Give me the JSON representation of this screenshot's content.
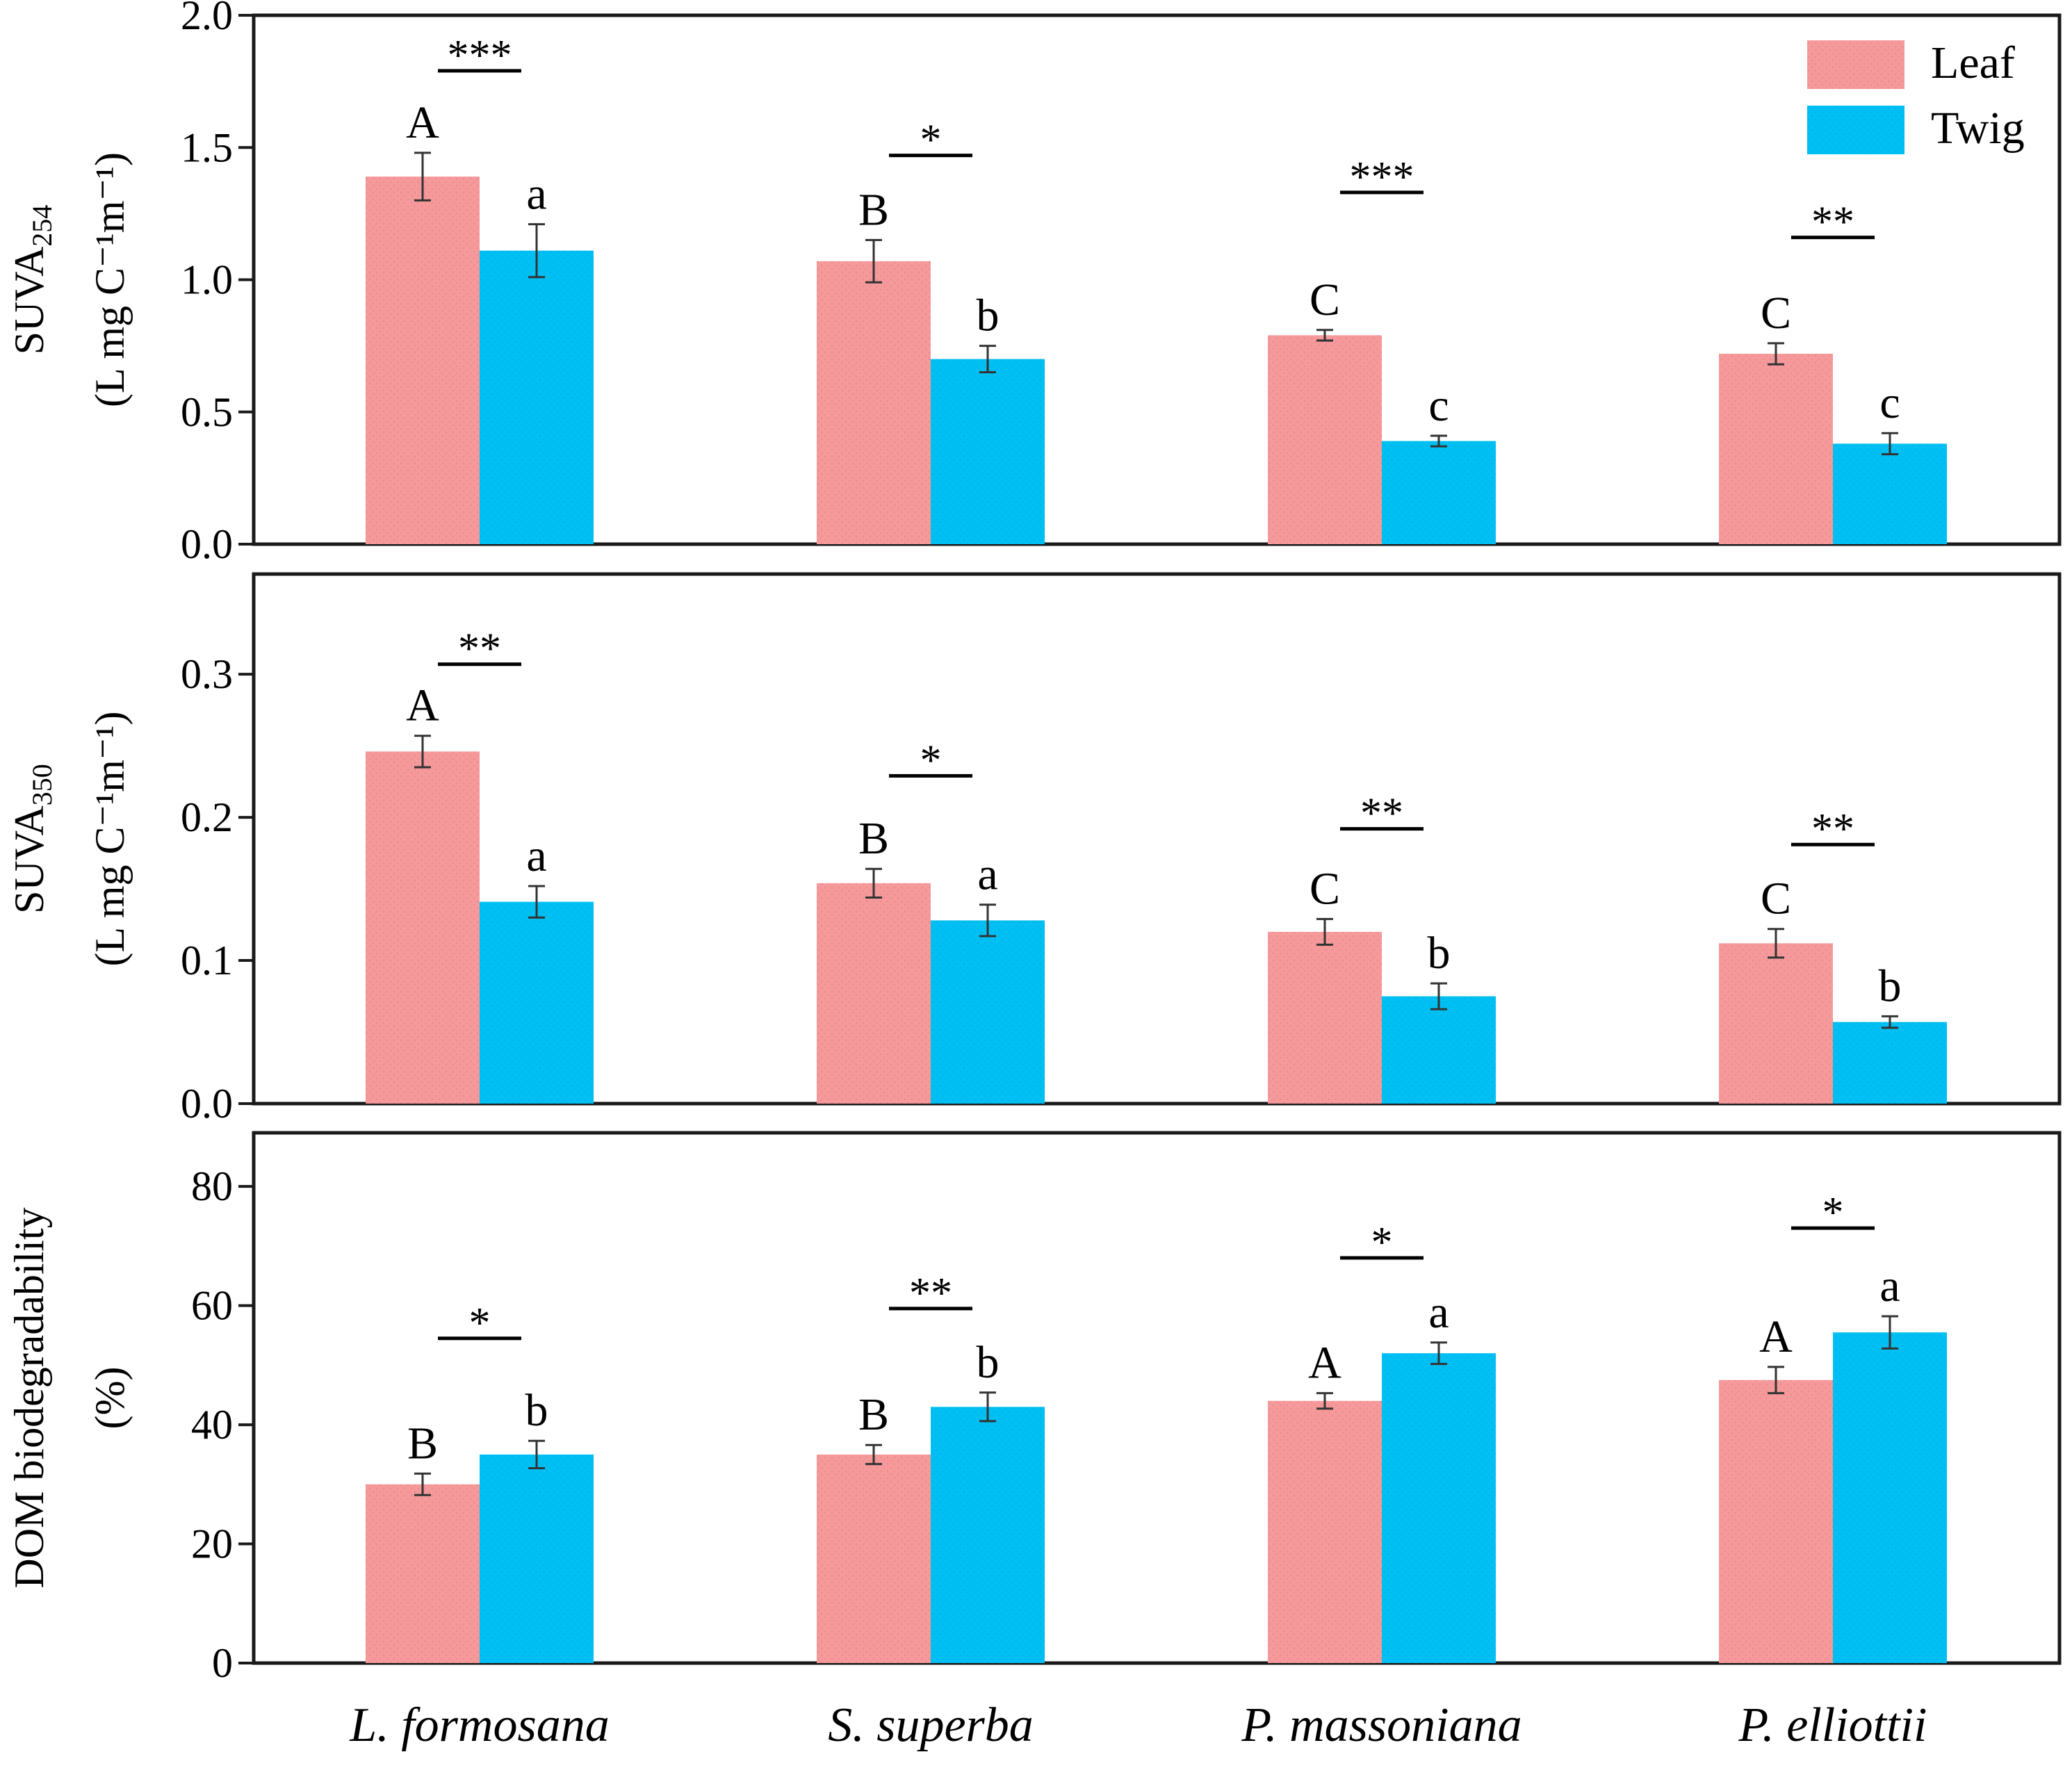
{
  "legend": [
    {
      "label": "Leaf",
      "color": "#f5999b"
    },
    {
      "label": "Twig",
      "color": "#00bff3"
    }
  ],
  "categories": [
    "L. formosana",
    "S. superba",
    "P. massoniana",
    "P. elliottii"
  ],
  "chart_data": [
    {
      "type": "bar",
      "id": "suva254",
      "ylabel_main": "SUVA",
      "ylabel_sub": "254",
      "ylabel_units": "(L mg C⁻¹m⁻¹)",
      "ylim": [
        0,
        2.0
      ],
      "yticks": [
        0.0,
        0.5,
        1.0,
        1.5,
        2.0
      ],
      "ytick_labels": [
        "0.0",
        "0.5",
        "1.0",
        "1.5",
        "2.0"
      ],
      "categories": [
        "L. formosana",
        "S. superba",
        "P. massoniana",
        "P. elliottii"
      ],
      "series": [
        {
          "name": "Leaf",
          "values": [
            1.39,
            1.07,
            0.79,
            0.72
          ],
          "errors": [
            0.09,
            0.08,
            0.02,
            0.04
          ],
          "letters": [
            "A",
            "B",
            "C",
            "C"
          ]
        },
        {
          "name": "Twig",
          "values": [
            1.11,
            0.7,
            0.39,
            0.38
          ],
          "errors": [
            0.1,
            0.05,
            0.02,
            0.04
          ],
          "letters": [
            "a",
            "b",
            "c",
            "c"
          ]
        }
      ],
      "significance": [
        "***",
        "*",
        "***",
        "**"
      ],
      "significance_y": [
        1.79,
        1.47,
        1.33,
        1.16
      ]
    },
    {
      "type": "bar",
      "id": "suva350",
      "ylabel_main": "SUVA",
      "ylabel_sub": "350",
      "ylabel_units": "(L mg C⁻¹m⁻¹)",
      "ylim": [
        0,
        0.37
      ],
      "yticks": [
        0.0,
        0.1,
        0.2,
        0.3
      ],
      "ytick_labels": [
        "0.0",
        "0.1",
        "0.2",
        "0.3"
      ],
      "categories": [
        "L. formosana",
        "S. superba",
        "P. massoniana",
        "P. elliottii"
      ],
      "series": [
        {
          "name": "Leaf",
          "values": [
            0.246,
            0.154,
            0.12,
            0.112
          ],
          "errors": [
            0.011,
            0.01,
            0.009,
            0.01
          ],
          "letters": [
            "A",
            "B",
            "C",
            "C"
          ]
        },
        {
          "name": "Twig",
          "values": [
            0.141,
            0.128,
            0.075,
            0.057
          ],
          "errors": [
            0.011,
            0.011,
            0.009,
            0.004
          ],
          "letters": [
            "a",
            "a",
            "b",
            "b"
          ]
        }
      ],
      "significance": [
        "**",
        "*",
        "**",
        "**"
      ],
      "significance_y": [
        0.307,
        0.229,
        0.192,
        0.181
      ]
    },
    {
      "type": "bar",
      "id": "biodeg",
      "ylabel_main": "DOM biodegradability",
      "ylabel_sub": "",
      "ylabel_units": "(%)",
      "ylim": [
        0,
        89
      ],
      "yticks": [
        0,
        20,
        40,
        60,
        80
      ],
      "ytick_labels": [
        "0",
        "20",
        "40",
        "60",
        "80"
      ],
      "categories": [
        "L. formosana",
        "S. superba",
        "P. massoniana",
        "P. elliottii"
      ],
      "series": [
        {
          "name": "Leaf",
          "values": [
            30,
            35,
            44,
            47.5
          ],
          "errors": [
            1.8,
            1.6,
            1.3,
            2.2
          ],
          "letters": [
            "B",
            "B",
            "A",
            "A"
          ]
        },
        {
          "name": "Twig",
          "values": [
            35,
            43,
            52,
            55.5
          ],
          "errors": [
            2.3,
            2.4,
            1.8,
            2.7
          ],
          "letters": [
            "b",
            "b",
            "a",
            "a"
          ]
        }
      ],
      "significance": [
        "*",
        "**",
        "*",
        "*"
      ],
      "significance_y": [
        54.5,
        59.5,
        68,
        73
      ]
    }
  ]
}
